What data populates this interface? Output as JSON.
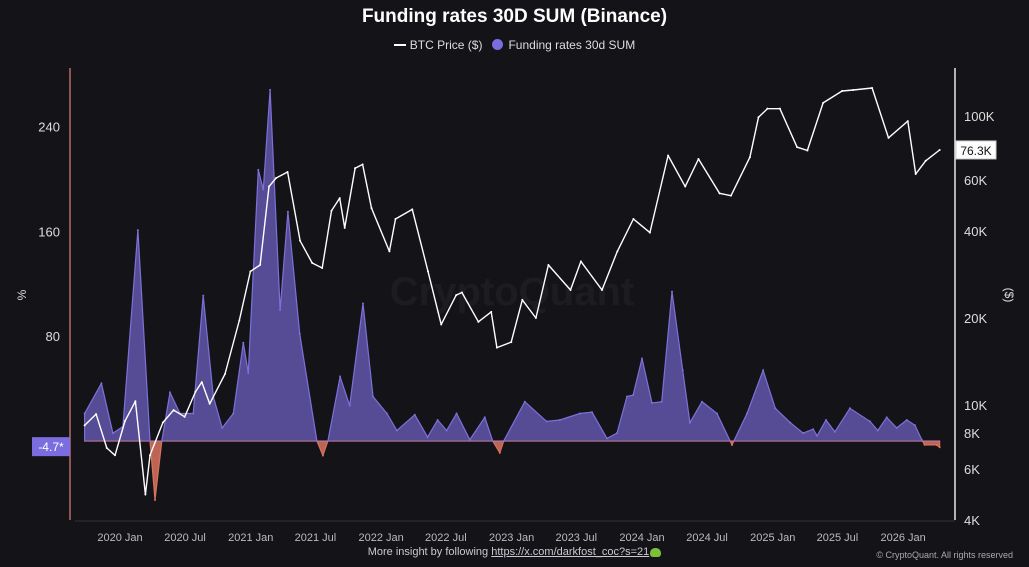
{
  "title": "Funding rates 30D SUM (Binance)",
  "legend": {
    "price_label": "BTC Price ($)",
    "funding_label": "Funding rates 30d SUM"
  },
  "footer": {
    "text": "More insight by following ",
    "link": "https://x.com/darkfost_coc?s=21",
    "copyright": "© CryptoQuant. All rights reserved"
  },
  "watermark": "CryptoQuant",
  "colors": {
    "background": "#141418",
    "funding_positive": "#5a4f9c",
    "funding_line": "#7e70d8",
    "funding_negative": "#d9735f",
    "price": "#ffffff",
    "left_axis": "#b86a6a"
  },
  "chart_data": {
    "type": "area",
    "title": "Funding rates 30D SUM (Binance)",
    "grid": false,
    "legend_placement": "top-center",
    "left_axis": {
      "label": "%",
      "ticks": [
        240,
        160,
        80
      ],
      "ylim": [
        -60,
        285
      ],
      "current_value_label": "-4.7*"
    },
    "right_axis": {
      "label": "($)",
      "scale": "log",
      "ticks": [
        {
          "v": 100000,
          "t": "100K"
        },
        {
          "v": 60000,
          "t": "60K"
        },
        {
          "v": 40000,
          "t": "40K"
        },
        {
          "v": 20000,
          "t": "20K"
        },
        {
          "v": 10000,
          "t": "10K"
        },
        {
          "v": 8000,
          "t": "8K"
        },
        {
          "v": 6000,
          "t": "6K"
        },
        {
          "v": 4000,
          "t": "4K"
        }
      ],
      "ylim": [
        4000,
        160000
      ],
      "current_value_label": "76.3K"
    },
    "x_ticks": [
      {
        "d": "2020-01-01",
        "t": "2020 Jan"
      },
      {
        "d": "2020-07-01",
        "t": "2020 Jul"
      },
      {
        "d": "2021-01-01",
        "t": "2021 Jan"
      },
      {
        "d": "2021-07-01",
        "t": "2021 Jul"
      },
      {
        "d": "2022-01-01",
        "t": "2022 Jan"
      },
      {
        "d": "2022-07-01",
        "t": "2022 Jul"
      },
      {
        "d": "2023-01-01",
        "t": "2023 Jan"
      },
      {
        "d": "2023-07-01",
        "t": "2023 Jul"
      },
      {
        "d": "2024-01-01",
        "t": "2024 Jan"
      },
      {
        "d": "2024-07-01",
        "t": "2024 Jul"
      },
      {
        "d": "2025-01-01",
        "t": "2025 Jan"
      },
      {
        "d": "2025-07-01",
        "t": "2025 Jul"
      },
      {
        "d": "2026-01-01",
        "t": "2026 Jan"
      }
    ],
    "xlim": [
      "2019-07-24",
      "2026-05-10"
    ],
    "series": [
      {
        "name": "Funding rates 30d SUM",
        "axis": "left",
        "points": [
          [
            "2019-09-24",
            21
          ],
          [
            "2019-11-10",
            44
          ],
          [
            "2019-12-12",
            6
          ],
          [
            "2020-01-09",
            11
          ],
          [
            "2020-02-20",
            161
          ],
          [
            "2020-03-25",
            0
          ],
          [
            "2020-04-08",
            -45
          ],
          [
            "2020-04-27",
            0
          ],
          [
            "2020-05-20",
            37
          ],
          [
            "2020-06-17",
            21
          ],
          [
            "2020-07-24",
            21
          ],
          [
            "2020-08-21",
            111
          ],
          [
            "2020-09-18",
            34
          ],
          [
            "2020-10-13",
            10
          ],
          [
            "2020-11-13",
            21
          ],
          [
            "2020-12-11",
            75
          ],
          [
            "2020-12-25",
            52
          ],
          [
            "2021-01-22",
            207
          ],
          [
            "2021-02-05",
            192
          ],
          [
            "2021-02-24",
            268
          ],
          [
            "2021-03-24",
            100
          ],
          [
            "2021-04-15",
            175
          ],
          [
            "2021-05-18",
            82
          ],
          [
            "2021-07-05",
            0
          ],
          [
            "2021-07-22",
            -11
          ],
          [
            "2021-08-05",
            0
          ],
          [
            "2021-09-08",
            49
          ],
          [
            "2021-10-05",
            27
          ],
          [
            "2021-11-11",
            105
          ],
          [
            "2021-12-09",
            34
          ],
          [
            "2022-01-17",
            21
          ],
          [
            "2022-02-14",
            8
          ],
          [
            "2022-04-05",
            20
          ],
          [
            "2022-05-11",
            3
          ],
          [
            "2022-06-08",
            16
          ],
          [
            "2022-07-03",
            8
          ],
          [
            "2022-07-31",
            21
          ],
          [
            "2022-09-06",
            1
          ],
          [
            "2022-10-18",
            18
          ],
          [
            "2022-11-09",
            0
          ],
          [
            "2022-11-29",
            -9
          ],
          [
            "2022-12-10",
            0
          ],
          [
            "2023-02-07",
            30
          ],
          [
            "2023-04-09",
            15
          ],
          [
            "2023-05-16",
            16
          ],
          [
            "2023-07-11",
            21
          ],
          [
            "2023-08-14",
            22
          ],
          [
            "2023-09-25",
            2
          ],
          [
            "2023-10-23",
            6
          ],
          [
            "2023-11-20",
            34
          ],
          [
            "2023-12-07",
            35
          ],
          [
            "2024-01-01",
            63
          ],
          [
            "2024-01-29",
            29
          ],
          [
            "2024-02-25",
            30
          ],
          [
            "2024-03-25",
            114
          ],
          [
            "2024-04-24",
            54
          ],
          [
            "2024-05-14",
            14
          ],
          [
            "2024-06-17",
            30
          ],
          [
            "2024-07-29",
            21
          ],
          [
            "2024-09-09",
            -3
          ],
          [
            "2024-10-21",
            21
          ],
          [
            "2024-12-05",
            54
          ],
          [
            "2025-01-08",
            25
          ],
          [
            "2025-02-19",
            14
          ],
          [
            "2025-03-27",
            6
          ],
          [
            "2025-04-24",
            9
          ],
          [
            "2025-05-05",
            4
          ],
          [
            "2025-05-30",
            16
          ],
          [
            "2025-06-24",
            7
          ],
          [
            "2025-08-05",
            25
          ],
          [
            "2025-09-30",
            15
          ],
          [
            "2025-10-22",
            8
          ],
          [
            "2025-11-16",
            18
          ],
          [
            "2025-12-14",
            10
          ],
          [
            "2026-01-11",
            16
          ],
          [
            "2026-02-03",
            12
          ],
          [
            "2026-02-22",
            1
          ],
          [
            "2026-03-02",
            -3
          ],
          [
            "2026-04-04",
            -3
          ],
          [
            "2026-04-13",
            -4.7
          ]
        ]
      },
      {
        "name": "BTC Price ($)",
        "axis": "right",
        "points": [
          [
            "2019-09-24",
            8500
          ],
          [
            "2019-10-26",
            9300
          ],
          [
            "2019-11-25",
            7100
          ],
          [
            "2019-12-18",
            6700
          ],
          [
            "2020-01-15",
            8800
          ],
          [
            "2020-02-13",
            10300
          ],
          [
            "2020-03-12",
            4900
          ],
          [
            "2020-03-25",
            6700
          ],
          [
            "2020-04-30",
            8700
          ],
          [
            "2020-05-30",
            9600
          ],
          [
            "2020-06-30",
            9100
          ],
          [
            "2020-07-30",
            11100
          ],
          [
            "2020-08-17",
            12000
          ],
          [
            "2020-09-08",
            10100
          ],
          [
            "2020-10-21",
            12800
          ],
          [
            "2020-11-30",
            19600
          ],
          [
            "2020-12-31",
            29000
          ],
          [
            "2021-01-27",
            30500
          ],
          [
            "2021-02-21",
            57000
          ],
          [
            "2021-03-13",
            61000
          ],
          [
            "2021-04-14",
            64000
          ],
          [
            "2021-05-19",
            37000
          ],
          [
            "2021-06-22",
            31000
          ],
          [
            "2021-07-20",
            29800
          ],
          [
            "2021-08-15",
            47000
          ],
          [
            "2021-09-07",
            52000
          ],
          [
            "2021-09-21",
            41000
          ],
          [
            "2021-10-20",
            66000
          ],
          [
            "2021-11-10",
            68000
          ],
          [
            "2021-12-05",
            48000
          ],
          [
            "2022-01-24",
            34000
          ],
          [
            "2022-02-10",
            44000
          ],
          [
            "2022-03-29",
            47500
          ],
          [
            "2022-05-12",
            29000
          ],
          [
            "2022-06-18",
            19000
          ],
          [
            "2022-07-30",
            24000
          ],
          [
            "2022-08-15",
            24500
          ],
          [
            "2022-09-30",
            19400
          ],
          [
            "2022-11-05",
            21000
          ],
          [
            "2022-11-21",
            15800
          ],
          [
            "2022-12-31",
            16500
          ],
          [
            "2023-01-31",
            23100
          ],
          [
            "2023-03-10",
            20000
          ],
          [
            "2023-04-14",
            30500
          ],
          [
            "2023-06-15",
            25000
          ],
          [
            "2023-07-14",
            31400
          ],
          [
            "2023-09-11",
            25000
          ],
          [
            "2023-10-24",
            34000
          ],
          [
            "2023-12-08",
            44000
          ],
          [
            "2024-01-23",
            39500
          ],
          [
            "2024-03-14",
            73000
          ],
          [
            "2024-05-01",
            57000
          ],
          [
            "2024-06-07",
            71000
          ],
          [
            "2024-08-05",
            54000
          ],
          [
            "2024-09-06",
            53000
          ],
          [
            "2024-10-29",
            72000
          ],
          [
            "2024-11-22",
            99000
          ],
          [
            "2024-12-17",
            106000
          ],
          [
            "2025-01-21",
            106000
          ],
          [
            "2025-03-10",
            78000
          ],
          [
            "2025-04-08",
            76000
          ],
          [
            "2025-05-22",
            111000
          ],
          [
            "2025-07-14",
            122000
          ],
          [
            "2025-08-14",
            123000
          ],
          [
            "2025-10-06",
            125000
          ],
          [
            "2025-11-21",
            84000
          ],
          [
            "2026-01-14",
            96000
          ],
          [
            "2026-02-05",
            63000
          ],
          [
            "2026-03-05",
            70000
          ],
          [
            "2026-04-13",
            76300
          ]
        ]
      }
    ]
  }
}
